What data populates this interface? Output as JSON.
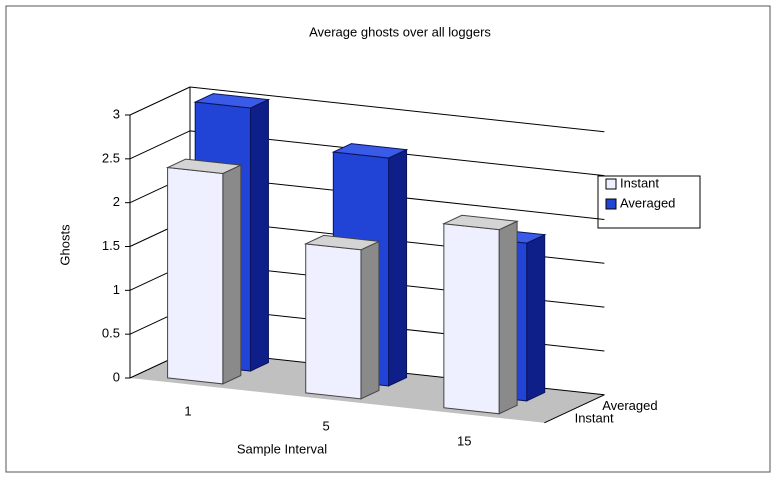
{
  "chart_data": {
    "type": "bar",
    "title": "Average ghosts over all loggers",
    "x_label": "Sample Interval",
    "y_label": "Ghosts",
    "categories": [
      "1",
      "5",
      "15"
    ],
    "series": [
      {
        "name": "Instant",
        "color": "#eef0ff",
        "values": [
          2.4,
          1.7,
          2.1
        ]
      },
      {
        "name": "Averaged",
        "color": "#2144d6",
        "values": [
          3,
          2.6,
          1.8
        ]
      }
    ],
    "ylim": [
      0,
      3
    ],
    "yticks": [
      0,
      0.5,
      1,
      1.5,
      2,
      2.5,
      3
    ],
    "grid": true,
    "legend": "right"
  }
}
